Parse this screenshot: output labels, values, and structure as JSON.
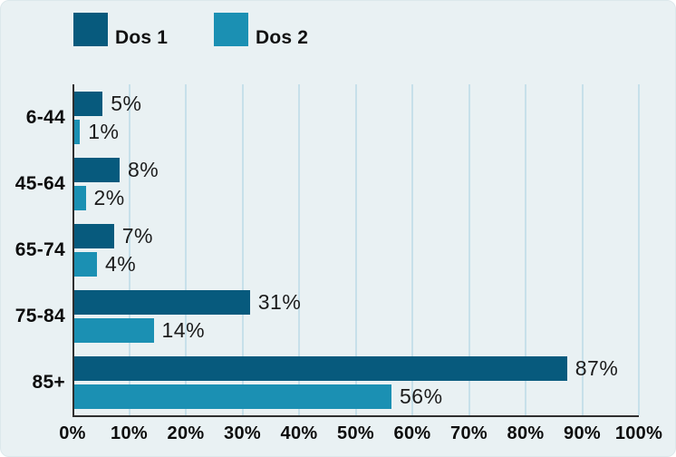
{
  "colors": {
    "background": "#e9f1f3",
    "gridline": "#c7e0ea",
    "axis": "#2f2f2f",
    "label_text": "#1c1c1c",
    "series1": "#075a7d",
    "series2": "#1b90b3"
  },
  "chart_data": {
    "type": "bar",
    "orientation": "horizontal",
    "categories": [
      "6-44",
      "45-64",
      "65-74",
      "75-84",
      "85+"
    ],
    "series": [
      {
        "name": "Dos 1",
        "color": "#075a7d",
        "values": [
          5,
          8,
          7,
          31,
          87
        ]
      },
      {
        "name": "Dos 2",
        "color": "#1b90b3",
        "values": [
          1,
          2,
          4,
          14,
          56
        ]
      }
    ],
    "value_labels": [
      [
        "5%",
        "1%"
      ],
      [
        "8%",
        "2%"
      ],
      [
        "7%",
        "4%"
      ],
      [
        "31%",
        "14%"
      ],
      [
        "87%",
        "56%"
      ]
    ],
    "xlim": [
      0,
      100
    ],
    "x_tick_labels": [
      "0%",
      "10%",
      "20%",
      "30%",
      "40%",
      "50%",
      "60%",
      "70%",
      "80%",
      "90%",
      "100%"
    ],
    "grid": "vertical",
    "legend_position": "top-left",
    "title": ""
  }
}
